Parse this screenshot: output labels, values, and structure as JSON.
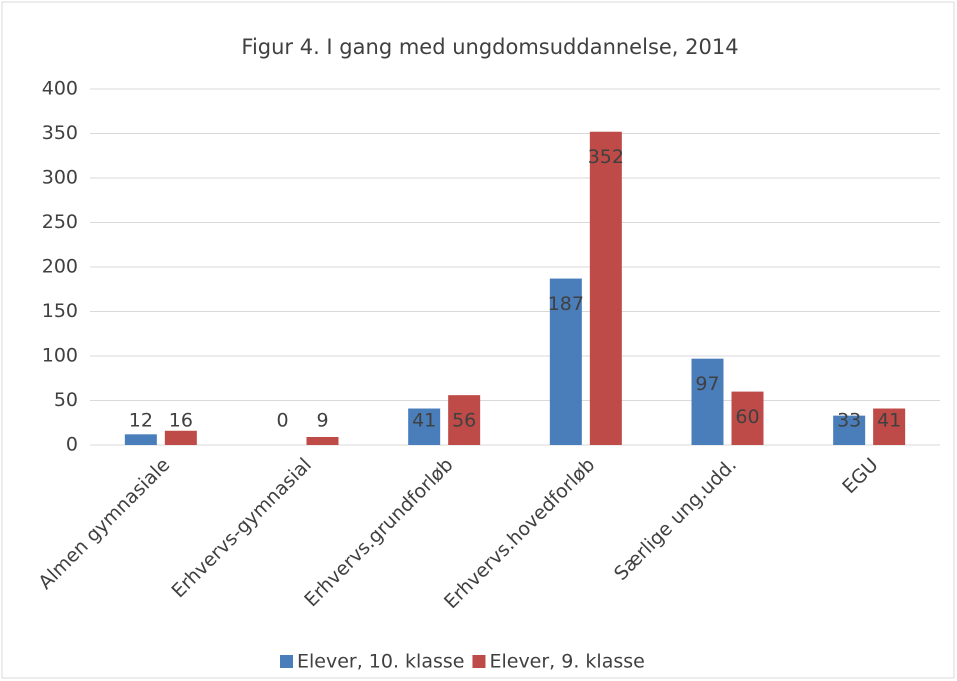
{
  "chart_data": {
    "type": "bar",
    "title": "Figur 4. I gang med ungdomsuddannelse, 2014",
    "categories": [
      "Almen gymnasiale",
      "Erhvervs-gymnasial",
      "Erhvervs.grundforløb",
      "Erhvervs.hovedforløb",
      "Særlige ung.udd.",
      "EGU"
    ],
    "series": [
      {
        "name": "Elever, 10. klasse",
        "color": "#4a7ebb",
        "values": [
          12,
          0,
          41,
          187,
          97,
          33
        ]
      },
      {
        "name": "Elever, 9. klasse",
        "color": "#be4b48",
        "values": [
          16,
          9,
          56,
          352,
          60,
          41
        ]
      }
    ],
    "ylim": [
      0,
      400
    ],
    "yticks": [
      0,
      50,
      100,
      150,
      200,
      250,
      300,
      350,
      400
    ],
    "grid": true,
    "legend": "bottom"
  }
}
